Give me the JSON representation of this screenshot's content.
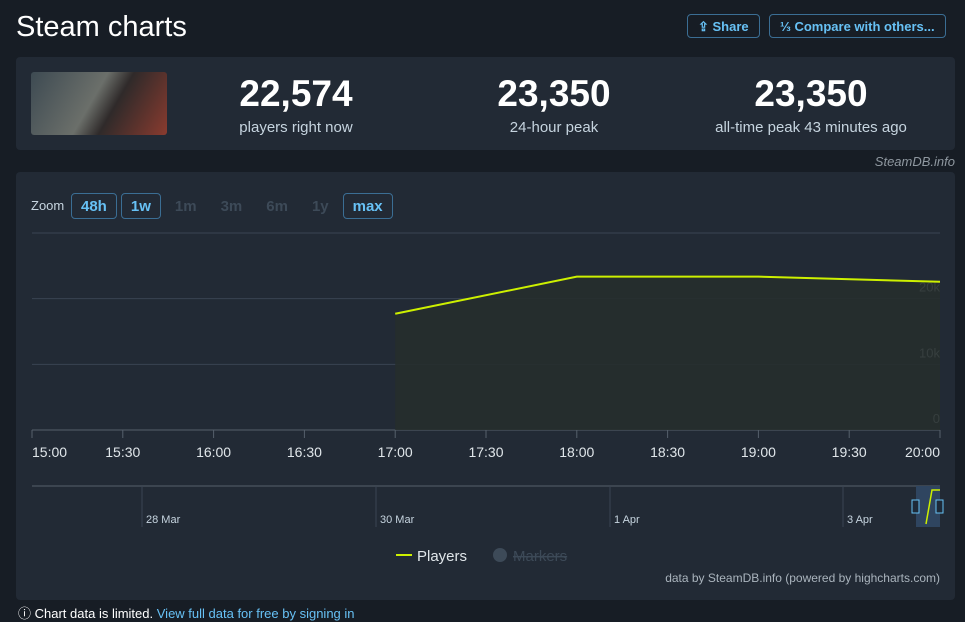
{
  "header": {
    "title": "Steam charts",
    "share": "Share",
    "compare": "Compare with others..."
  },
  "stats": [
    {
      "value": "22,574",
      "label": "players right now"
    },
    {
      "value": "23,350",
      "label": "24-hour peak"
    },
    {
      "value": "23,350",
      "label": "all-time peak 43 minutes ago"
    }
  ],
  "watermark": "SteamDB.info",
  "zoom": {
    "label": "Zoom",
    "options": [
      {
        "label": "48h",
        "enabled": true
      },
      {
        "label": "1w",
        "enabled": true
      },
      {
        "label": "1m",
        "enabled": false
      },
      {
        "label": "3m",
        "enabled": false
      },
      {
        "label": "6m",
        "enabled": false
      },
      {
        "label": "1y",
        "enabled": false
      },
      {
        "label": "max",
        "enabled": true
      }
    ]
  },
  "chart_data": {
    "type": "line",
    "x": [
      17,
      18,
      19,
      20
    ],
    "series": [
      {
        "name": "Players",
        "color": "#cdf000",
        "values": [
          17700,
          23350,
          23350,
          22574
        ]
      }
    ],
    "xlim": [
      15,
      20
    ],
    "xticks": [
      {
        "value": 15,
        "label": "15:00"
      },
      {
        "value": 15.5,
        "label": "15:30"
      },
      {
        "value": 16,
        "label": "16:00"
      },
      {
        "value": 16.5,
        "label": "16:30"
      },
      {
        "value": 17,
        "label": "17:00"
      },
      {
        "value": 17.5,
        "label": "17:30"
      },
      {
        "value": 18,
        "label": "18:00"
      },
      {
        "value": 18.5,
        "label": "18:30"
      },
      {
        "value": 19,
        "label": "19:00"
      },
      {
        "value": 19.5,
        "label": "19:30"
      },
      {
        "value": 20,
        "label": "20:00"
      }
    ],
    "ylim": [
      0,
      30000
    ],
    "yticks": [
      0,
      {
        "value": 10000,
        "label": "10k"
      },
      {
        "value": 20000,
        "label": "20k"
      }
    ],
    "grid": true,
    "legend_extra": "Markers",
    "navigator_labels": [
      "28 Mar",
      "30 Mar",
      "1 Apr",
      "3 Apr"
    ],
    "credits": "data by SteamDB.info (powered by highcharts.com)"
  },
  "footer": {
    "note": "Chart data is limited.",
    "link": "View full data for free by signing in"
  }
}
